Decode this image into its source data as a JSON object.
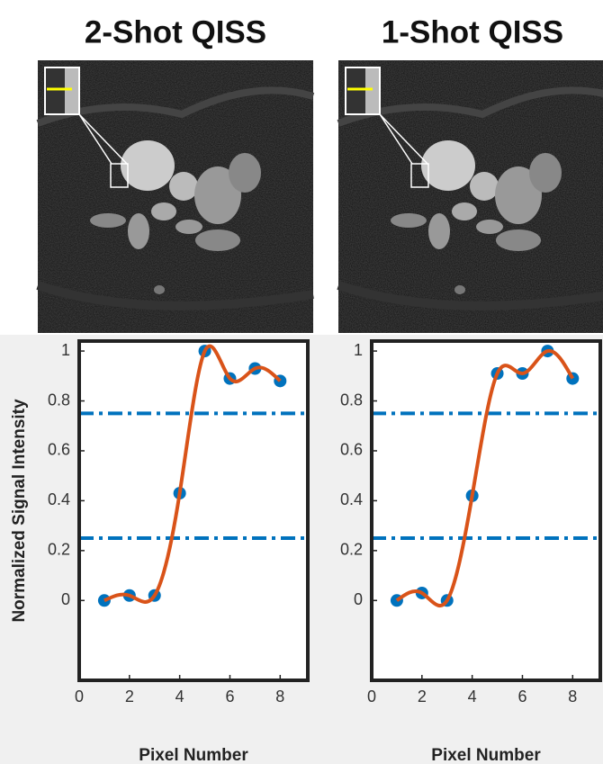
{
  "chart_data": [
    {
      "type": "scatter",
      "title": "2-Shot QISS",
      "xlabel": "Pixel Number",
      "ylabel": "Normalized Signal Intensity",
      "x": [
        1,
        2,
        3,
        4,
        5,
        6,
        7,
        8
      ],
      "values": [
        0,
        0.02,
        0.02,
        0.43,
        1.0,
        0.89,
        0.93,
        0.88
      ],
      "color": "#0072bd",
      "fit_color": "#d95319",
      "reference_lines": [
        0.25,
        0.75
      ],
      "reference_color": "#0072bd",
      "xlim": [
        0,
        9.1
      ],
      "ylim": [
        -0.32,
        1.04
      ],
      "xticks": [
        0,
        2,
        4,
        6,
        8
      ],
      "yticks": [
        0,
        0.2,
        0.4,
        0.6,
        0.8,
        1
      ]
    },
    {
      "type": "scatter",
      "title": "1-Shot QISS",
      "xlabel": "Pixel Number",
      "x": [
        1,
        2,
        3,
        4,
        5,
        6,
        7,
        8
      ],
      "values": [
        0,
        0.03,
        0,
        0.42,
        0.91,
        0.91,
        1.0,
        0.89
      ],
      "color": "#0072bd",
      "fit_color": "#d95319",
      "reference_lines": [
        0.25,
        0.75
      ],
      "reference_color": "#0072bd",
      "xlim": [
        0,
        9.1
      ],
      "ylim": [
        -0.32,
        1.04
      ],
      "xticks": [
        0,
        2,
        4,
        6,
        8
      ],
      "yticks": [
        0,
        0.2,
        0.4,
        0.6,
        0.8,
        1
      ]
    }
  ]
}
